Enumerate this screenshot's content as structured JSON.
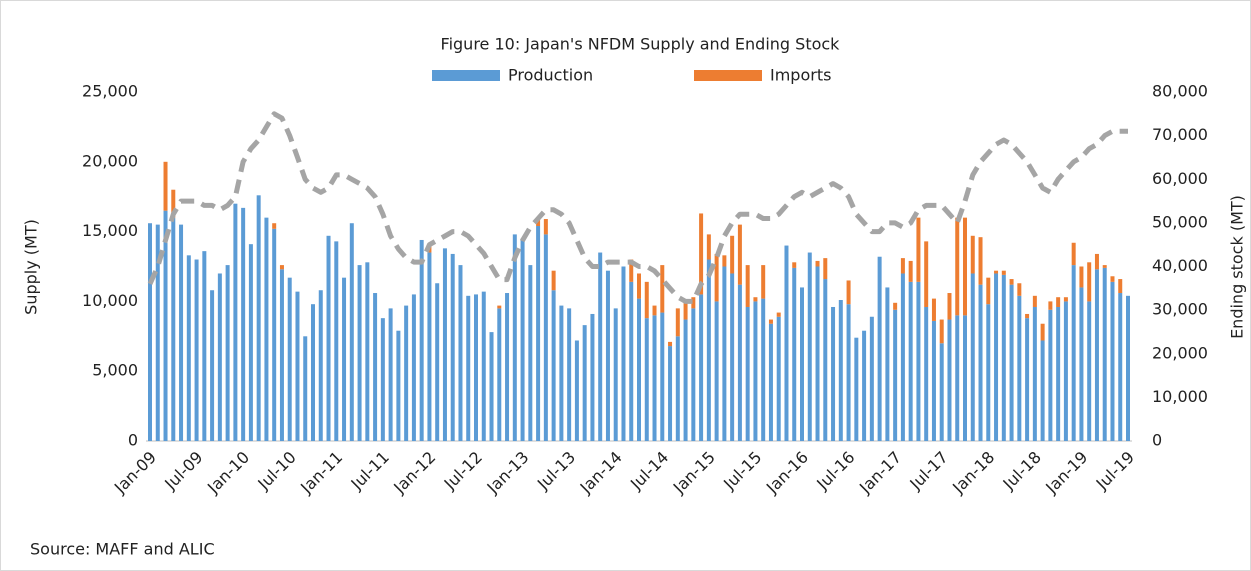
{
  "chart_data": {
    "type": "bar",
    "stacked": true,
    "title": "Figure 10: Japan's NFDM Supply and Ending Stock",
    "source": "Source: MAFF and ALIC",
    "ylabel": "Supply (MT)",
    "y2label": "Ending stock (MT)",
    "categories": [
      "Jan-09",
      null,
      null,
      null,
      null,
      null,
      "Jul-09",
      null,
      null,
      null,
      null,
      null,
      "Jan-10",
      null,
      null,
      null,
      null,
      null,
      "Jul-10",
      null,
      null,
      null,
      null,
      null,
      "Jan-11",
      null,
      null,
      null,
      null,
      null,
      "Jul-11",
      null,
      null,
      null,
      null,
      null,
      "Jan-12",
      null,
      null,
      null,
      null,
      null,
      "Jul-12",
      null,
      null,
      null,
      null,
      null,
      "Jan-13",
      null,
      null,
      null,
      null,
      null,
      "Jul-13",
      null,
      null,
      null,
      null,
      null,
      "Jan-14",
      null,
      null,
      null,
      null,
      null,
      "Jul-14",
      null,
      null,
      null,
      null,
      null,
      "Jan-15",
      null,
      null,
      null,
      null,
      null,
      "Jul-15",
      null,
      null,
      null,
      null,
      null,
      "Jan-16",
      null,
      null,
      null,
      null,
      null,
      "Jul-16",
      null,
      null,
      null,
      null,
      null,
      "Jan-17",
      null,
      null,
      null,
      null,
      null,
      "Jul-17",
      null,
      null,
      null,
      null,
      null,
      "Jan-18",
      null,
      null,
      null,
      null,
      null,
      "Jul-18",
      null,
      null,
      null,
      null,
      null,
      "Jan-19",
      null,
      null,
      null,
      null,
      null,
      "Jul-19"
    ],
    "series": [
      {
        "name": "Production",
        "type": "bar",
        "color": "#5b9bd5",
        "values": [
          15600,
          15500,
          16500,
          16000,
          15500,
          13300,
          13000,
          13600,
          10800,
          12000,
          12600,
          17000,
          16700,
          14100,
          17600,
          16000,
          15200,
          12300,
          11700,
          10700,
          7500,
          9800,
          10800,
          14700,
          14300,
          11700,
          15600,
          12600,
          12800,
          10600,
          8800,
          9500,
          7900,
          9700,
          10500,
          14400,
          13500,
          11300,
          13800,
          13400,
          12600,
          10400,
          10500,
          10700,
          7800,
          9500,
          10600,
          14800,
          14500,
          12600,
          15400,
          14800,
          10800,
          9700,
          9500,
          7200,
          8300,
          9100,
          13500,
          12200,
          9500,
          12500,
          11400,
          10200,
          8800,
          9000,
          9200,
          6800,
          7500,
          8700,
          9500,
          10500,
          13000,
          10000,
          12500,
          12000,
          11200,
          9600,
          10000,
          10200,
          8400,
          8900,
          14000,
          12400,
          11000,
          13500,
          12500,
          11600,
          9600,
          10100,
          9800,
          7400,
          7900,
          8900,
          13200,
          11000,
          9400,
          12000,
          11400,
          11400,
          9600,
          8600,
          7000,
          8700,
          9000,
          9000,
          12000,
          11200,
          9800,
          12000,
          11900,
          11200,
          10400,
          8800,
          9600,
          7200,
          9400,
          9600,
          10000,
          12600,
          11000,
          10000,
          12300,
          12400,
          11400,
          10600,
          10400
        ]
      },
      {
        "name": "Imports",
        "type": "bar",
        "color": "#ed7d31",
        "values": [
          0,
          0,
          3500,
          2000,
          0,
          0,
          0,
          0,
          0,
          0,
          0,
          0,
          0,
          0,
          0,
          0,
          400,
          300,
          0,
          0,
          0,
          0,
          0,
          0,
          0,
          0,
          0,
          0,
          0,
          0,
          0,
          0,
          0,
          0,
          0,
          0,
          500,
          0,
          0,
          0,
          0,
          0,
          0,
          0,
          0,
          200,
          0,
          0,
          0,
          0,
          500,
          1100,
          1400,
          0,
          0,
          0,
          0,
          0,
          0,
          0,
          0,
          0,
          1600,
          1800,
          2600,
          700,
          3400,
          300,
          2000,
          1300,
          800,
          5800,
          1800,
          3400,
          800,
          2700,
          4300,
          3000,
          300,
          2400,
          300,
          300,
          0,
          400,
          0,
          0,
          400,
          1500,
          0,
          0,
          1700,
          0,
          0,
          0,
          0,
          0,
          500,
          1100,
          1500,
          4600,
          4700,
          1600,
          1700,
          1900,
          7000,
          7000,
          2700,
          3400,
          1900,
          200,
          300,
          400,
          900,
          300,
          800,
          1200,
          600,
          700,
          300,
          1600,
          1500,
          2800,
          1100,
          200,
          400,
          1000,
          0
        ]
      },
      {
        "type": "line",
        "axis": "y2",
        "dashed": true,
        "color": "#a5a5a5",
        "values": [
          36000,
          40000,
          46000,
          52000,
          55000,
          55000,
          55000,
          54000,
          54000,
          53000,
          54000,
          56000,
          64000,
          67000,
          69000,
          72000,
          75000,
          74000,
          70000,
          65000,
          60000,
          58000,
          57000,
          58000,
          61000,
          61000,
          60000,
          59000,
          58000,
          56000,
          52000,
          47000,
          44000,
          42000,
          41000,
          41000,
          45000,
          46000,
          47000,
          48000,
          48000,
          47000,
          45000,
          43000,
          40000,
          37000,
          37000,
          42000,
          46000,
          49000,
          51000,
          53000,
          53000,
          52000,
          50000,
          46000,
          42000,
          40000,
          40000,
          41000,
          41000,
          41000,
          41000,
          40000,
          40000,
          39000,
          37000,
          35000,
          33000,
          32000,
          32000,
          36000,
          38000,
          42000,
          47000,
          50000,
          52000,
          52000,
          52000,
          51000,
          51000,
          52000,
          54000,
          56000,
          57000,
          56000,
          57000,
          58000,
          59000,
          58000,
          56000,
          52000,
          50000,
          48000,
          48000,
          50000,
          50000,
          49000,
          50000,
          53000,
          54000,
          54000,
          54000,
          52000,
          50000,
          55000,
          61000,
          64000,
          66000,
          68000,
          69000,
          68000,
          66000,
          64000,
          61000,
          58000,
          57000,
          60000,
          62000,
          64000,
          65000,
          67000,
          68000,
          70000,
          71000,
          71000,
          71000
        ]
      }
    ],
    "ylim": [
      0,
      25000
    ],
    "yticks": [
      0,
      {
        "value": 5000,
        "label": "5,000"
      },
      {
        "value": 10000,
        "label": "10,000"
      },
      {
        "value": 15000,
        "label": "15,000"
      },
      {
        "value": 20000,
        "label": "20,000"
      },
      {
        "value": 25000,
        "label": "25,000"
      }
    ],
    "y2lim": [
      0,
      80000
    ],
    "y2ticks": [
      0,
      {
        "value": 10000,
        "label": "10,000"
      },
      {
        "value": 20000,
        "label": "20,000"
      },
      {
        "value": 30000,
        "label": "30,000"
      },
      {
        "value": 40000,
        "label": "40,000"
      },
      {
        "value": 50000,
        "label": "50,000"
      },
      {
        "value": 60000,
        "label": "60,000"
      },
      {
        "value": 70000,
        "label": "70,000"
      },
      {
        "value": 80000,
        "label": "80,000"
      }
    ],
    "grid": false,
    "legend": "top"
  }
}
